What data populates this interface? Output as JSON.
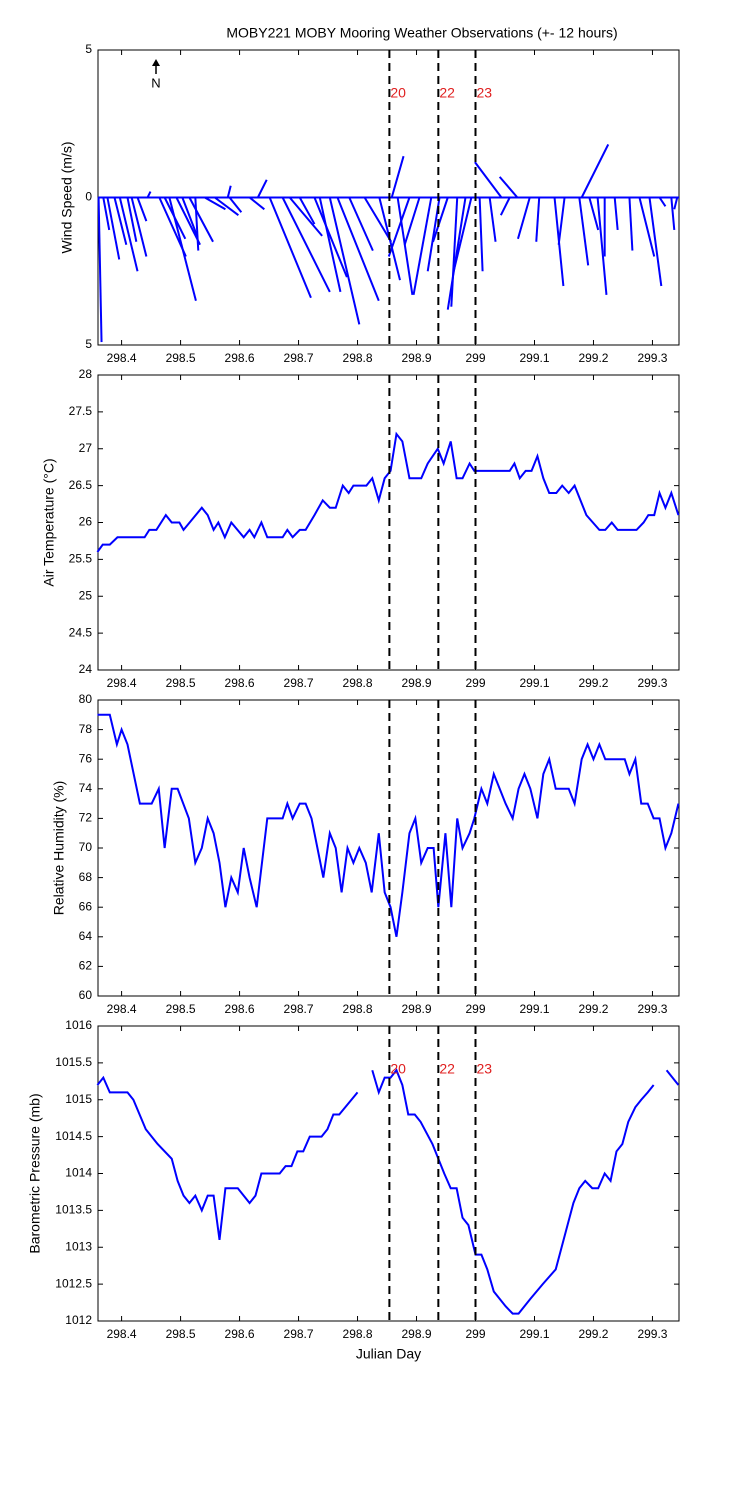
{
  "chart_data": [
    {
      "type": "stick",
      "title": "MOBY221 MOBY Mooring Weather Observations (+- 12 hours)",
      "ylabel": "Wind Speed (m/s)",
      "annotation": "N",
      "xlim": [
        298.36,
        299.345
      ],
      "xticks": [
        298.4,
        298.5,
        298.6,
        298.7,
        298.8,
        298.9,
        299,
        299.1,
        299.2,
        299.3
      ],
      "ylim": [
        -5,
        5
      ],
      "yticks": [
        {
          "value": -5,
          "label": "5"
        },
        0,
        5
      ],
      "event_x": [
        298.854,
        298.937,
        299.0
      ],
      "event_labels": [
        "20",
        "22",
        "23"
      ],
      "series": [
        {
          "color": "#0000ff",
          "x": [
            298.361,
            298.369,
            298.376,
            298.388,
            298.397,
            298.41,
            298.417,
            298.427,
            298.444,
            298.464,
            298.473,
            298.481,
            298.493,
            298.503,
            298.515,
            298.525,
            298.541,
            298.558,
            298.58,
            298.583,
            298.617,
            298.631,
            298.651,
            298.673,
            298.685,
            298.702,
            298.727,
            298.736,
            298.753,
            298.766,
            298.786,
            298.812,
            298.837,
            298.858,
            298.868,
            298.888,
            298.905,
            298.925,
            298.939,
            298.953,
            298.969,
            298.983,
            298.993,
            299.007,
            299.024,
            299.044,
            299.058,
            299.071,
            299.092,
            299.108,
            299.134,
            299.151,
            299.176,
            299.18,
            299.193,
            299.207,
            299.219,
            299.236,
            299.261,
            299.278,
            299.295,
            299.312,
            299.332,
            299.342
          ],
          "u": [
            0.1,
            0.2,
            0.4,
            0.4,
            0.6,
            0.3,
            0.5,
            0.3,
            0.1,
            0.9,
            0.7,
            0.9,
            0.8,
            0.5,
            0.8,
            0.1,
            0.7,
            0.8,
            0.1,
            0.4,
            0.5,
            0.3,
            1.4,
            1.6,
            1.1,
            0.5,
            1.1,
            0.7,
            1.0,
            1.4,
            0.8,
            0.9,
            0.7,
            0.4,
            0.5,
            -0.7,
            -0.5,
            -0.6,
            -0.4,
            -0.5,
            -0.2,
            -0.6,
            -0.6,
            0.1,
            0.2,
            -0.9,
            -0.3,
            -0.6,
            -0.4,
            -0.1,
            0.3,
            -0.2,
            0.3,
            0.9,
            0.3,
            0.3,
            0.0,
            0.1,
            0.1,
            0.5,
            0.4,
            0.2,
            0.1,
            -0.1
          ],
          "v": [
            -4.9,
            -1.1,
            -2.1,
            -1.6,
            -2.5,
            -1.5,
            -2.0,
            -0.8,
            0.2,
            -2.0,
            -1.4,
            -3.5,
            -1.6,
            -1.3,
            -1.5,
            -1.8,
            -0.4,
            -0.6,
            0.4,
            -0.5,
            -0.4,
            0.6,
            -3.4,
            -3.2,
            -1.3,
            -0.9,
            -2.7,
            -3.2,
            -4.3,
            -3.5,
            -1.8,
            -1.5,
            -2.8,
            1.4,
            -3.3,
            -2.0,
            -1.6,
            -3.3,
            -2.5,
            -1.5,
            -3.7,
            -3.8,
            -2.5,
            -2.5,
            -1.5,
            1.2,
            -0.6,
            0.7,
            -1.4,
            -1.5,
            -3.0,
            -1.6,
            -2.3,
            1.8,
            -1.1,
            -3.3,
            -2.0,
            -1.1,
            -1.8,
            -2.0,
            -3.0,
            -0.3,
            -1.1,
            -0.4
          ]
        }
      ]
    },
    {
      "type": "line",
      "ylabel": "Air Temperature (°C)",
      "xlim": [
        298.36,
        299.345
      ],
      "xticks": [
        298.4,
        298.5,
        298.6,
        298.7,
        298.8,
        298.9,
        299,
        299.1,
        299.2,
        299.3
      ],
      "ylim": [
        24,
        28
      ],
      "yticks": [
        24,
        24.5,
        25,
        25.5,
        26,
        26.5,
        27,
        27.5,
        28
      ],
      "event_x": [
        298.854,
        298.937,
        299.0
      ],
      "series": [
        {
          "color": "#0000ff",
          "x": [
            298.359,
            298.368,
            298.38,
            298.393,
            298.439,
            298.447,
            298.459,
            298.475,
            298.485,
            298.498,
            298.505,
            298.536,
            298.546,
            298.556,
            298.564,
            298.575,
            298.586,
            298.607,
            298.617,
            298.625,
            298.637,
            298.647,
            298.673,
            298.681,
            298.69,
            298.702,
            298.712,
            298.727,
            298.741,
            298.753,
            298.763,
            298.775,
            298.785,
            298.793,
            298.815,
            298.825,
            298.836,
            298.846,
            298.856,
            298.866,
            298.876,
            298.888,
            298.908,
            298.919,
            298.936,
            298.946,
            298.958,
            298.968,
            298.978,
            298.99,
            298.998,
            299.058,
            299.066,
            299.075,
            299.085,
            299.095,
            299.105,
            299.115,
            299.125,
            299.137,
            299.147,
            299.158,
            299.168,
            299.188,
            299.21,
            299.22,
            299.231,
            299.241,
            299.273,
            299.285,
            299.293,
            299.303,
            299.312,
            299.322,
            299.332,
            299.344
          ],
          "values": [
            25.6,
            25.7,
            25.7,
            25.8,
            25.8,
            25.9,
            25.9,
            26.1,
            26.0,
            26.0,
            25.9,
            26.2,
            26.1,
            25.9,
            26.0,
            25.8,
            26.0,
            25.8,
            25.9,
            25.8,
            26.0,
            25.8,
            25.8,
            25.9,
            25.8,
            25.9,
            25.9,
            26.1,
            26.3,
            26.2,
            26.2,
            26.5,
            26.4,
            26.5,
            26.5,
            26.6,
            26.3,
            26.6,
            26.7,
            27.2,
            27.1,
            26.6,
            26.6,
            26.8,
            27.0,
            26.8,
            27.1,
            26.6,
            26.6,
            26.8,
            26.7,
            26.7,
            26.8,
            26.6,
            26.7,
            26.7,
            26.9,
            26.6,
            26.4,
            26.4,
            26.5,
            26.4,
            26.5,
            26.1,
            25.9,
            25.9,
            26.0,
            25.9,
            25.9,
            26.0,
            26.1,
            26.1,
            26.4,
            26.2,
            26.4,
            26.1
          ]
        }
      ]
    },
    {
      "type": "line",
      "ylabel": "Relative Humidity (%)",
      "xlim": [
        298.36,
        299.345
      ],
      "xticks": [
        298.4,
        298.5,
        298.6,
        298.7,
        298.8,
        298.9,
        299,
        299.1,
        299.2,
        299.3
      ],
      "ylim": [
        60,
        80
      ],
      "yticks": [
        60,
        62,
        64,
        66,
        68,
        70,
        72,
        74,
        76,
        78,
        80
      ],
      "event_x": [
        298.854,
        298.937,
        299.0
      ],
      "series": [
        {
          "color": "#0000ff",
          "x": [
            298.359,
            298.38,
            298.392,
            298.4,
            298.41,
            298.431,
            298.451,
            298.463,
            298.473,
            298.485,
            298.495,
            298.514,
            298.525,
            298.536,
            298.546,
            298.556,
            298.566,
            298.576,
            298.586,
            298.597,
            298.607,
            298.617,
            298.629,
            298.647,
            298.673,
            298.681,
            298.69,
            298.702,
            298.712,
            298.722,
            298.732,
            298.742,
            298.753,
            298.763,
            298.773,
            298.783,
            298.793,
            298.803,
            298.814,
            298.824,
            298.836,
            298.846,
            298.856,
            298.866,
            298.876,
            298.888,
            298.898,
            298.908,
            298.919,
            298.929,
            298.937,
            298.949,
            298.959,
            298.969,
            298.978,
            298.99,
            298.998,
            299.01,
            299.02,
            299.031,
            299.041,
            299.051,
            299.063,
            299.073,
            299.083,
            299.093,
            299.105,
            299.115,
            299.125,
            299.136,
            299.158,
            299.168,
            299.18,
            299.19,
            299.2,
            299.21,
            299.22,
            299.253,
            299.261,
            299.271,
            299.281,
            299.292,
            299.302,
            299.312,
            299.322,
            299.332,
            299.344
          ],
          "values": [
            79,
            79,
            77,
            78,
            77,
            73,
            73,
            74,
            70,
            74,
            74,
            72,
            69,
            70,
            72,
            71,
            69,
            66,
            68,
            67,
            70,
            68,
            66,
            72,
            72,
            73,
            72,
            73,
            73,
            72,
            70,
            68,
            71,
            70,
            67,
            70,
            69,
            70,
            69,
            67,
            71,
            67,
            66,
            64,
            67,
            71,
            72,
            69,
            70,
            70,
            66,
            71,
            66,
            72,
            70,
            71,
            72,
            74,
            73,
            75,
            74,
            73,
            72,
            74,
            75,
            74,
            72,
            75,
            76,
            74,
            74,
            73,
            76,
            77,
            76,
            77,
            76,
            76,
            75,
            76,
            73,
            73,
            72,
            72,
            70,
            71,
            73
          ]
        }
      ]
    },
    {
      "type": "line",
      "ylabel": "Barometric Pressure (mb)",
      "xlabel": "Julian Day",
      "xlim": [
        298.36,
        299.345
      ],
      "xticks": [
        298.4,
        298.5,
        298.6,
        298.7,
        298.8,
        298.9,
        299,
        299.1,
        299.2,
        299.3
      ],
      "ylim": [
        1012,
        1016
      ],
      "yticks": [
        1012,
        1012.5,
        1013,
        1013.5,
        1014,
        1014.5,
        1015,
        1015.5,
        1016
      ],
      "event_x": [
        298.854,
        298.937,
        299.0
      ],
      "event_labels": [
        "20",
        "22",
        "23"
      ],
      "series": [
        {
          "color": "#0000ff",
          "x": [
            298.359,
            298.369,
            298.38,
            298.41,
            298.42,
            298.441,
            298.461,
            298.485,
            298.495,
            298.505,
            298.515,
            298.525,
            298.536,
            298.546,
            298.556,
            298.566,
            298.576,
            298.597,
            298.617,
            298.627,
            298.637,
            298.668,
            298.678,
            298.688,
            298.698,
            298.708,
            298.719,
            298.739,
            298.749,
            298.759,
            298.769,
            298.8,
            298.812,
            298.825,
            298.836,
            298.846,
            298.856,
            298.866,
            298.876,
            298.886,
            298.897,
            298.907,
            298.927,
            298.947,
            298.958,
            298.968,
            298.978,
            298.988,
            299.0,
            299.01,
            299.02,
            299.031,
            299.051,
            299.063,
            299.073,
            299.093,
            299.114,
            299.136,
            299.146,
            299.156,
            299.166,
            299.176,
            299.186,
            299.198,
            299.208,
            299.219,
            299.229,
            299.239,
            299.249,
            299.259,
            299.271,
            299.281,
            299.292,
            299.302,
            299.312,
            299.324,
            299.344
          ],
          "values": [
            1015.2,
            1015.3,
            1015.1,
            1015.1,
            1015.0,
            1014.6,
            1014.4,
            1014.2,
            1013.9,
            1013.7,
            1013.6,
            1013.7,
            1013.5,
            1013.7,
            1013.7,
            1013.1,
            1013.8,
            1013.8,
            1013.6,
            1013.7,
            1014.0,
            1014.0,
            1014.1,
            1014.1,
            1014.3,
            1014.3,
            1014.5,
            1014.5,
            1014.6,
            1014.8,
            1014.8,
            1015.1,
            null,
            1015.4,
            1015.1,
            1015.3,
            1015.3,
            1015.4,
            1015.2,
            1014.8,
            1014.8,
            1014.7,
            1014.4,
            1014.0,
            1013.8,
            1013.8,
            1013.4,
            1013.3,
            1012.9,
            1012.9,
            1012.7,
            1012.4,
            1012.2,
            1012.1,
            1012.1,
            1012.3,
            1012.5,
            1012.7,
            1013.0,
            1013.3,
            1013.6,
            1013.8,
            1013.9,
            1013.8,
            1013.8,
            1014.0,
            1013.9,
            1014.3,
            1014.4,
            1014.7,
            1014.9,
            1015.0,
            1015.1,
            1015.2,
            null,
            1015.4,
            1015.2
          ]
        }
      ]
    }
  ]
}
